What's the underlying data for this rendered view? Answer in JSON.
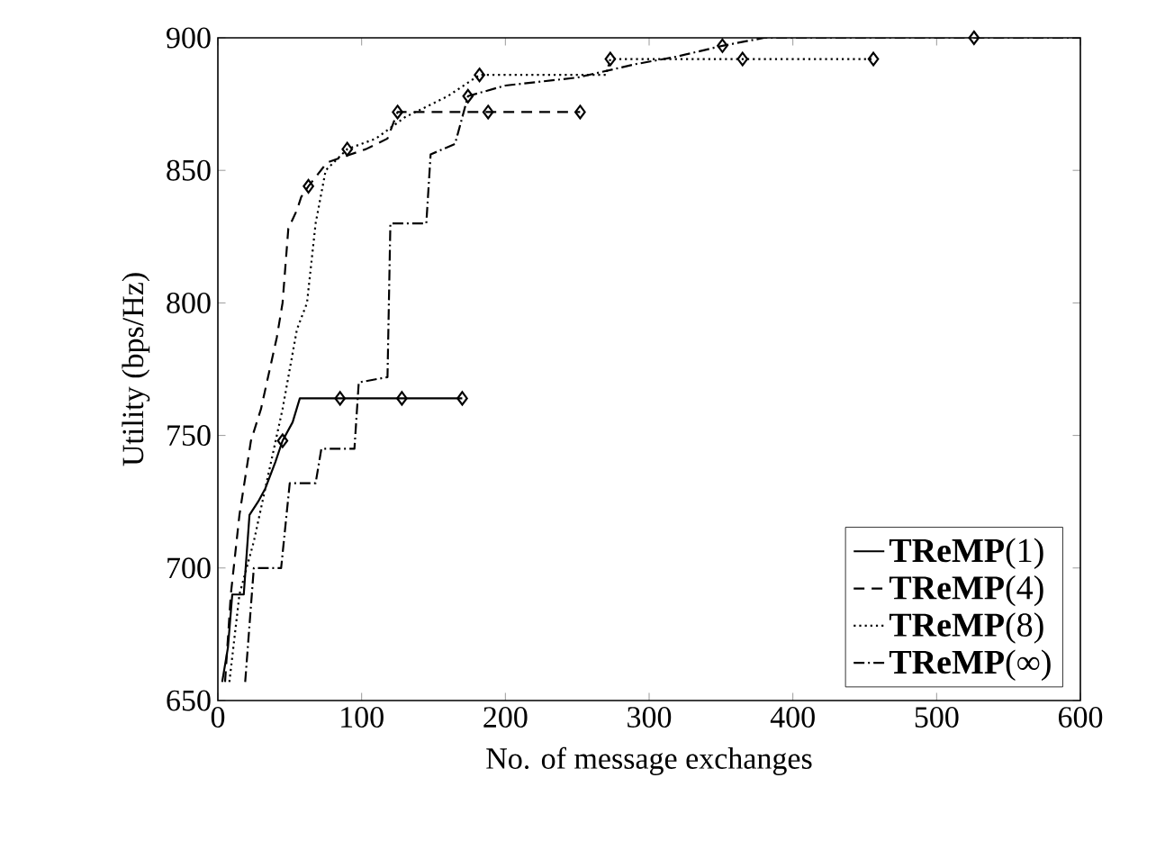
{
  "chart_data": {
    "type": "line",
    "xlabel": "No. of message exchanges",
    "ylabel": "Utility (bps/Hz)",
    "xlim": [
      0,
      600
    ],
    "ylim": [
      650,
      900
    ],
    "xticks": [
      0,
      100,
      200,
      300,
      400,
      500,
      600
    ],
    "yticks": [
      650,
      700,
      750,
      800,
      850,
      900
    ],
    "grid": false,
    "legend": "bottom right",
    "marker": "none",
    "series": [
      {
        "name": "**TReMP**(1)",
        "color": "#000000",
        "line_style": "solid",
        "x": [
          3,
          7,
          10,
          18,
          22,
          28,
          33,
          40,
          45,
          52,
          57,
          85,
          128,
          170
        ],
        "values": [
          657,
          670,
          690,
          690,
          720,
          725,
          730,
          740,
          748,
          755,
          764,
          764,
          764,
          764
        ]
      },
      {
        "name": "**TReMP**(4)",
        "color": "#000000",
        "line_style": "dashed",
        "x": [
          5,
          9,
          15,
          23,
          30,
          41,
          45,
          49,
          55,
          58,
          63,
          76,
          103,
          118,
          125,
          188,
          252
        ],
        "values": [
          657,
          690,
          720,
          748,
          760,
          787,
          800,
          828,
          835,
          840,
          844,
          853,
          858,
          862,
          872,
          872,
          872
        ]
      },
      {
        "name": "**TReMP**(8)",
        "color": "#000000",
        "line_style": "dotted",
        "x": [
          8,
          15,
          25,
          35,
          45,
          55,
          62,
          68,
          75,
          90,
          110,
          130,
          160,
          182,
          270,
          273,
          365,
          456
        ],
        "values": [
          657,
          690,
          710,
          735,
          760,
          790,
          800,
          830,
          850,
          858,
          862,
          870,
          878,
          886,
          886,
          892,
          892,
          892
        ]
      },
      {
        "name": "**TReMP**(∞)",
        "color": "#000000",
        "line_style": "dashdot",
        "x": [
          19,
          25,
          44,
          50,
          68,
          72,
          95,
          98,
          118,
          120,
          145,
          148,
          165,
          174,
          200,
          250,
          290,
          320,
          351,
          380,
          526,
          600
        ],
        "values": [
          657,
          700,
          700,
          732,
          732,
          745,
          745,
          770,
          772,
          830,
          830,
          856,
          860,
          878,
          882,
          885,
          890,
          893,
          897,
          900,
          900,
          900
        ]
      },
      {
        "type": "scatter",
        "marker": "diamond",
        "color": "#000000",
        "x": [
          45,
          85,
          128,
          170
        ],
        "values": [
          748,
          764,
          764,
          764
        ]
      },
      {
        "type": "scatter",
        "marker": "diamond",
        "color": "#000000",
        "x": [
          63,
          125,
          188,
          252
        ],
        "values": [
          844,
          872,
          872,
          872
        ]
      },
      {
        "type": "scatter",
        "marker": "diamond",
        "color": "#000000",
        "x": [
          90,
          182,
          273,
          365,
          456
        ],
        "values": [
          858,
          886,
          892,
          892,
          892
        ]
      },
      {
        "type": "scatter",
        "marker": "diamond",
        "color": "#000000",
        "x": [
          174,
          351,
          526
        ],
        "values": [
          878,
          897,
          900
        ]
      }
    ]
  }
}
